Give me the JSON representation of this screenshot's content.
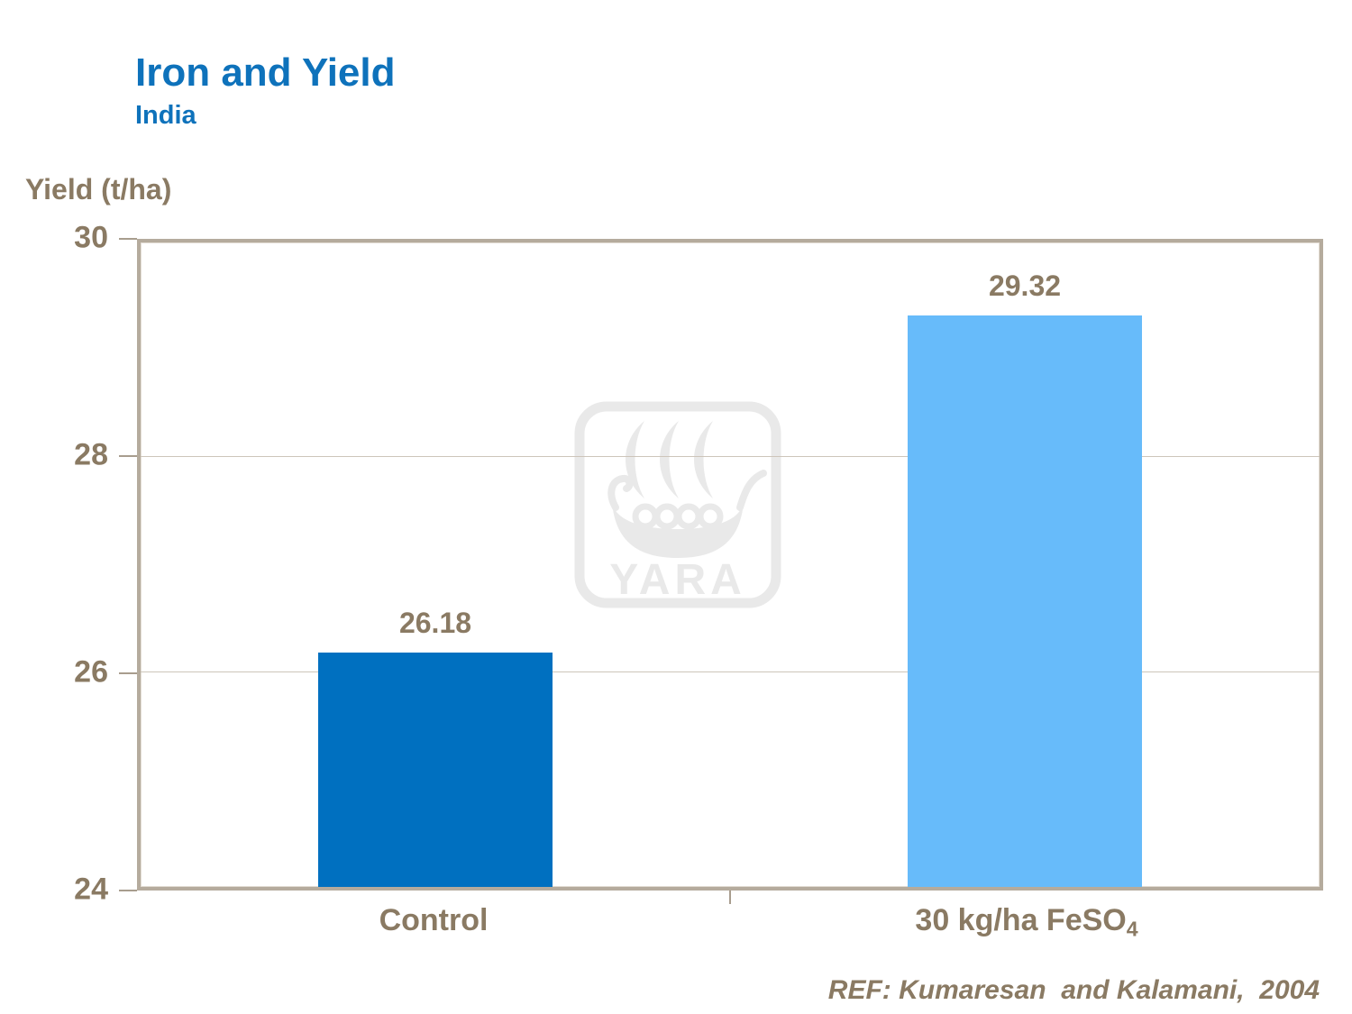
{
  "slide": {
    "title": "Iron and Yield",
    "subtitle": "India",
    "reference": "REF: Kumaresan  and Kalamani,  2004"
  },
  "chart_data": {
    "type": "bar",
    "title": "Iron and Yield",
    "subtitle": "India",
    "ylabel": "Yield (t/ha)",
    "xlabel": "",
    "categories": [
      "Control",
      "30 kg/ha FeSO4"
    ],
    "categories_display": [
      {
        "text": "Control",
        "sub": ""
      },
      {
        "text": "30 kg/ha FeSO",
        "sub": "4"
      }
    ],
    "values": [
      26.18,
      29.32
    ],
    "value_labels": [
      "26.18",
      "29.32"
    ],
    "bar_colors": [
      "#0070c0",
      "#67bbfa"
    ],
    "ylim": [
      24,
      30
    ],
    "yticks": [
      30,
      28,
      26,
      24
    ],
    "ytick_labels": [
      "30",
      "28",
      "26",
      "24"
    ],
    "grid": "horizontal gridlines at interior ticks (26, 28)",
    "legend": false
  },
  "watermark": {
    "name": "yara-viking-ship-logo",
    "text": "YARA",
    "color": "#e9e9e9"
  },
  "colors": {
    "title_blue": "#0e72bb",
    "text_brown": "#8a7a63",
    "bar_control": "#0070c0",
    "bar_feso4": "#67bbfa",
    "frame_tan": "#b5ab9d",
    "gridline": "#cdc5ba",
    "watermark_gray": "#e9e9e9"
  }
}
